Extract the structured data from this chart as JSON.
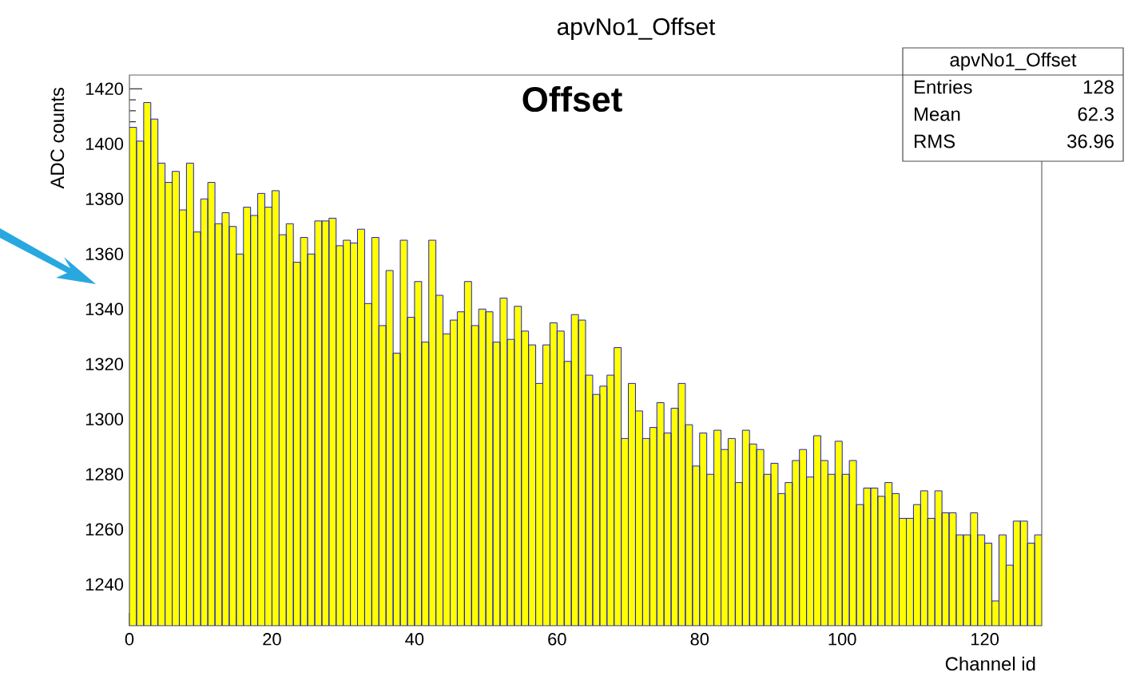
{
  "chart_data": {
    "type": "histogram",
    "title": "apvNo1_Offset",
    "xlabel": "Channel id",
    "ylabel": "ADC counts",
    "bins": [
      0,
      1,
      2,
      3,
      4,
      5,
      6,
      7,
      8,
      9,
      10,
      11,
      12,
      13,
      14,
      15,
      16,
      17,
      18,
      19,
      20,
      21,
      22,
      23,
      24,
      25,
      26,
      27,
      28,
      29,
      30,
      31,
      32,
      33,
      34,
      35,
      36,
      37,
      38,
      39,
      40,
      41,
      42,
      43,
      44,
      45,
      46,
      47,
      48,
      49,
      50,
      51,
      52,
      53,
      54,
      55,
      56,
      57,
      58,
      59,
      60,
      61,
      62,
      63,
      64,
      65,
      66,
      67,
      68,
      69,
      70,
      71,
      72,
      73,
      74,
      75,
      76,
      77,
      78,
      79,
      80,
      81,
      82,
      83,
      84,
      85,
      86,
      87,
      88,
      89,
      90,
      91,
      92,
      93,
      94,
      95,
      96,
      97,
      98,
      99,
      100,
      101,
      102,
      103,
      104,
      105,
      106,
      107,
      108,
      109,
      110,
      111,
      112,
      113,
      114,
      115,
      116,
      117,
      118,
      119,
      120,
      121,
      122,
      123,
      124,
      125,
      126,
      127,
      128
    ],
    "values": [
      1406,
      1401,
      1415,
      1409,
      1393,
      1386,
      1390,
      1376,
      1393,
      1368,
      1380,
      1386,
      1371,
      1375,
      1370,
      1360,
      1377,
      1374,
      1382,
      1377,
      1383,
      1367,
      1371,
      1357,
      1366,
      1360,
      1372,
      1372,
      1373,
      1363,
      1365,
      1364,
      1369,
      1342,
      1366,
      1334,
      1354,
      1324,
      1365,
      1337,
      1350,
      1328,
      1365,
      1345,
      1331,
      1336,
      1339,
      1350,
      1334,
      1340,
      1339,
      1328,
      1344,
      1329,
      1341,
      1332,
      1327,
      1313,
      1327,
      1335,
      1332,
      1321,
      1338,
      1336,
      1316,
      1309,
      1312,
      1316,
      1326,
      1293,
      1313,
      1303,
      1293,
      1297,
      1306,
      1295,
      1304,
      1313,
      1298,
      1283,
      1295,
      1280,
      1296,
      1289,
      1293,
      1277,
      1296,
      1291,
      1289,
      1280,
      1284,
      1273,
      1277,
      1285,
      1289,
      1279,
      1294,
      1285,
      1280,
      1292,
      1280,
      1285,
      1269,
      1275,
      1275,
      1272,
      1277,
      1273,
      1264,
      1264,
      1269,
      1274,
      1264,
      1274,
      1266,
      1266,
      1258,
      1258,
      1266,
      1258,
      1255,
      1234,
      1258,
      1247,
      1263,
      1263,
      1255,
      1258
    ],
    "color": "#ffff00",
    "xlim": [
      0,
      128
    ],
    "xticks": [
      0,
      20,
      40,
      60,
      80,
      100,
      120
    ],
    "ylim": [
      1225,
      1425
    ],
    "yticks": [
      1240,
      1260,
      1280,
      1300,
      1320,
      1340,
      1360,
      1380,
      1400,
      1420
    ],
    "grid": false,
    "annotations": [
      "Offset",
      "apvNo1_Offset",
      "Entries",
      "128",
      "Mean",
      "62.3",
      "RMS",
      "36.96"
    ]
  }
}
